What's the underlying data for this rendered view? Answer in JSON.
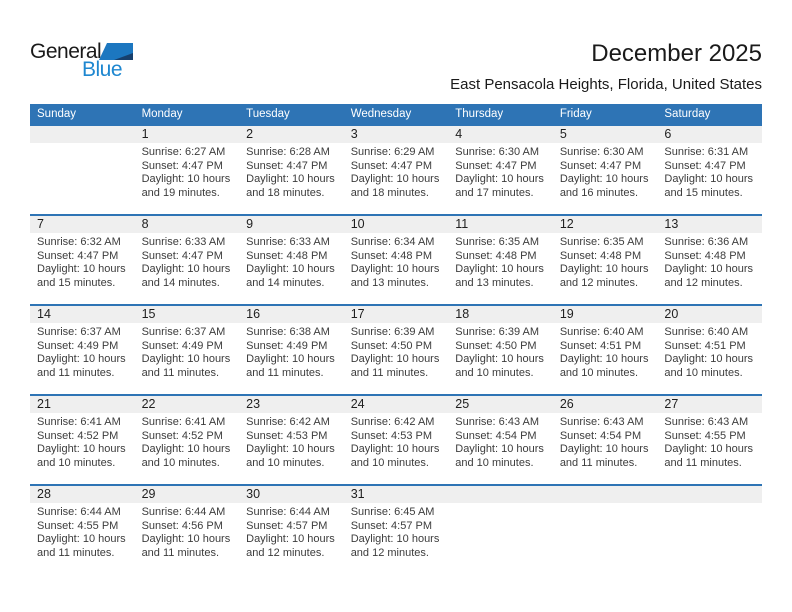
{
  "logo": {
    "general": "General",
    "blue": "Blue"
  },
  "header": {
    "title": "December 2025",
    "subtitle": "East Pensacola Heights, Florida, United States"
  },
  "colors": {
    "header_blue": "#2e74b5",
    "separator_blue": "#2e74b5",
    "band_gray": "#efefef",
    "logo_blue": "#1e87d0",
    "logo_triangle_blue": "#1c77c0",
    "logo_triangle_navy": "#17406d",
    "title_text": "#1a1a1a",
    "detail_text": "#3c3c3c"
  },
  "calendar": {
    "day_headers": [
      "Sunday",
      "Monday",
      "Tuesday",
      "Wednesday",
      "Thursday",
      "Friday",
      "Saturday"
    ],
    "weeks": [
      [
        null,
        {
          "num": "1",
          "sunrise": "Sunrise: 6:27 AM",
          "sunset": "Sunset: 4:47 PM",
          "daylight1": "Daylight: 10 hours",
          "daylight2": "and 19 minutes."
        },
        {
          "num": "2",
          "sunrise": "Sunrise: 6:28 AM",
          "sunset": "Sunset: 4:47 PM",
          "daylight1": "Daylight: 10 hours",
          "daylight2": "and 18 minutes."
        },
        {
          "num": "3",
          "sunrise": "Sunrise: 6:29 AM",
          "sunset": "Sunset: 4:47 PM",
          "daylight1": "Daylight: 10 hours",
          "daylight2": "and 18 minutes."
        },
        {
          "num": "4",
          "sunrise": "Sunrise: 6:30 AM",
          "sunset": "Sunset: 4:47 PM",
          "daylight1": "Daylight: 10 hours",
          "daylight2": "and 17 minutes."
        },
        {
          "num": "5",
          "sunrise": "Sunrise: 6:30 AM",
          "sunset": "Sunset: 4:47 PM",
          "daylight1": "Daylight: 10 hours",
          "daylight2": "and 16 minutes."
        },
        {
          "num": "6",
          "sunrise": "Sunrise: 6:31 AM",
          "sunset": "Sunset: 4:47 PM",
          "daylight1": "Daylight: 10 hours",
          "daylight2": "and 15 minutes."
        }
      ],
      [
        {
          "num": "7",
          "sunrise": "Sunrise: 6:32 AM",
          "sunset": "Sunset: 4:47 PM",
          "daylight1": "Daylight: 10 hours",
          "daylight2": "and 15 minutes."
        },
        {
          "num": "8",
          "sunrise": "Sunrise: 6:33 AM",
          "sunset": "Sunset: 4:47 PM",
          "daylight1": "Daylight: 10 hours",
          "daylight2": "and 14 minutes."
        },
        {
          "num": "9",
          "sunrise": "Sunrise: 6:33 AM",
          "sunset": "Sunset: 4:48 PM",
          "daylight1": "Daylight: 10 hours",
          "daylight2": "and 14 minutes."
        },
        {
          "num": "10",
          "sunrise": "Sunrise: 6:34 AM",
          "sunset": "Sunset: 4:48 PM",
          "daylight1": "Daylight: 10 hours",
          "daylight2": "and 13 minutes."
        },
        {
          "num": "11",
          "sunrise": "Sunrise: 6:35 AM",
          "sunset": "Sunset: 4:48 PM",
          "daylight1": "Daylight: 10 hours",
          "daylight2": "and 13 minutes."
        },
        {
          "num": "12",
          "sunrise": "Sunrise: 6:35 AM",
          "sunset": "Sunset: 4:48 PM",
          "daylight1": "Daylight: 10 hours",
          "daylight2": "and 12 minutes."
        },
        {
          "num": "13",
          "sunrise": "Sunrise: 6:36 AM",
          "sunset": "Sunset: 4:48 PM",
          "daylight1": "Daylight: 10 hours",
          "daylight2": "and 12 minutes."
        }
      ],
      [
        {
          "num": "14",
          "sunrise": "Sunrise: 6:37 AM",
          "sunset": "Sunset: 4:49 PM",
          "daylight1": "Daylight: 10 hours",
          "daylight2": "and 11 minutes."
        },
        {
          "num": "15",
          "sunrise": "Sunrise: 6:37 AM",
          "sunset": "Sunset: 4:49 PM",
          "daylight1": "Daylight: 10 hours",
          "daylight2": "and 11 minutes."
        },
        {
          "num": "16",
          "sunrise": "Sunrise: 6:38 AM",
          "sunset": "Sunset: 4:49 PM",
          "daylight1": "Daylight: 10 hours",
          "daylight2": "and 11 minutes."
        },
        {
          "num": "17",
          "sunrise": "Sunrise: 6:39 AM",
          "sunset": "Sunset: 4:50 PM",
          "daylight1": "Daylight: 10 hours",
          "daylight2": "and 11 minutes."
        },
        {
          "num": "18",
          "sunrise": "Sunrise: 6:39 AM",
          "sunset": "Sunset: 4:50 PM",
          "daylight1": "Daylight: 10 hours",
          "daylight2": "and 10 minutes."
        },
        {
          "num": "19",
          "sunrise": "Sunrise: 6:40 AM",
          "sunset": "Sunset: 4:51 PM",
          "daylight1": "Daylight: 10 hours",
          "daylight2": "and 10 minutes."
        },
        {
          "num": "20",
          "sunrise": "Sunrise: 6:40 AM",
          "sunset": "Sunset: 4:51 PM",
          "daylight1": "Daylight: 10 hours",
          "daylight2": "and 10 minutes."
        }
      ],
      [
        {
          "num": "21",
          "sunrise": "Sunrise: 6:41 AM",
          "sunset": "Sunset: 4:52 PM",
          "daylight1": "Daylight: 10 hours",
          "daylight2": "and 10 minutes."
        },
        {
          "num": "22",
          "sunrise": "Sunrise: 6:41 AM",
          "sunset": "Sunset: 4:52 PM",
          "daylight1": "Daylight: 10 hours",
          "daylight2": "and 10 minutes."
        },
        {
          "num": "23",
          "sunrise": "Sunrise: 6:42 AM",
          "sunset": "Sunset: 4:53 PM",
          "daylight1": "Daylight: 10 hours",
          "daylight2": "and 10 minutes."
        },
        {
          "num": "24",
          "sunrise": "Sunrise: 6:42 AM",
          "sunset": "Sunset: 4:53 PM",
          "daylight1": "Daylight: 10 hours",
          "daylight2": "and 10 minutes."
        },
        {
          "num": "25",
          "sunrise": "Sunrise: 6:43 AM",
          "sunset": "Sunset: 4:54 PM",
          "daylight1": "Daylight: 10 hours",
          "daylight2": "and 10 minutes."
        },
        {
          "num": "26",
          "sunrise": "Sunrise: 6:43 AM",
          "sunset": "Sunset: 4:54 PM",
          "daylight1": "Daylight: 10 hours",
          "daylight2": "and 11 minutes."
        },
        {
          "num": "27",
          "sunrise": "Sunrise: 6:43 AM",
          "sunset": "Sunset: 4:55 PM",
          "daylight1": "Daylight: 10 hours",
          "daylight2": "and 11 minutes."
        }
      ],
      [
        {
          "num": "28",
          "sunrise": "Sunrise: 6:44 AM",
          "sunset": "Sunset: 4:55 PM",
          "daylight1": "Daylight: 10 hours",
          "daylight2": "and 11 minutes."
        },
        {
          "num": "29",
          "sunrise": "Sunrise: 6:44 AM",
          "sunset": "Sunset: 4:56 PM",
          "daylight1": "Daylight: 10 hours",
          "daylight2": "and 11 minutes."
        },
        {
          "num": "30",
          "sunrise": "Sunrise: 6:44 AM",
          "sunset": "Sunset: 4:57 PM",
          "daylight1": "Daylight: 10 hours",
          "daylight2": "and 12 minutes."
        },
        {
          "num": "31",
          "sunrise": "Sunrise: 6:45 AM",
          "sunset": "Sunset: 4:57 PM",
          "daylight1": "Daylight: 10 hours",
          "daylight2": "and 12 minutes."
        },
        null,
        null,
        null
      ]
    ]
  }
}
